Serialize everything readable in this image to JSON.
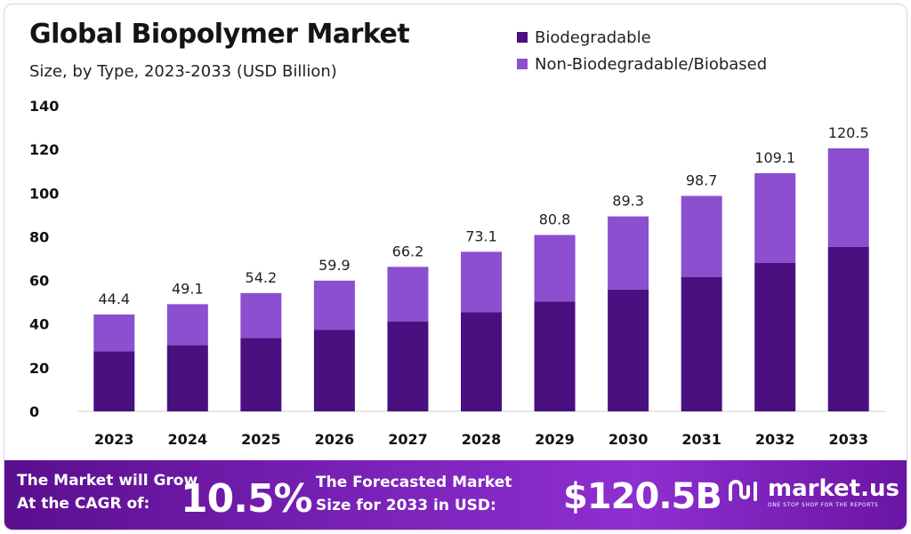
{
  "header": {
    "title": "Global Biopolymer Market",
    "subtitle": "Size, by Type, 2023-2033 (USD Billion)"
  },
  "legend": [
    {
      "label": "Biodegradable",
      "color": "#4a1080"
    },
    {
      "label": "Non-Biodegradable/Biobased",
      "color": "#8b4fd0"
    }
  ],
  "chart_data": {
    "type": "bar",
    "stacked": true,
    "title": "Global Biopolymer Market",
    "subtitle": "Size, by Type, 2023-2033 (USD Billion)",
    "categories": [
      "2023",
      "2024",
      "2025",
      "2026",
      "2027",
      "2028",
      "2029",
      "2030",
      "2031",
      "2032",
      "2033"
    ],
    "series": [
      {
        "name": "Biodegradable",
        "color": "#4a1080",
        "values": [
          27.5,
          30.4,
          33.6,
          37.4,
          41.1,
          45.5,
          50.3,
          55.8,
          61.6,
          68.1,
          75.3
        ]
      },
      {
        "name": "Non-Biodegradable/Biobased",
        "color": "#8b4fd0",
        "values": [
          16.9,
          18.7,
          20.6,
          22.5,
          25.1,
          27.6,
          30.5,
          33.5,
          37.1,
          41.0,
          45.2
        ]
      }
    ],
    "totals": [
      "44.4",
      "49.1",
      "54.2",
      "59.9",
      "66.2",
      "73.1",
      "80.8",
      "89.3",
      "98.7",
      "109.1",
      "120.5"
    ],
    "yticks": [
      0,
      20,
      40,
      60,
      80,
      100,
      120,
      140
    ],
    "ylim": [
      0,
      140
    ],
    "grid": false,
    "legend_position": "top-right"
  },
  "banner": {
    "cagr_label_line1": "The Market will Grow",
    "cagr_label_line2": "At the CAGR of:",
    "cagr_value": "10.5%",
    "forecast_label_line1": "The Forecasted Market",
    "forecast_label_line2": "Size for 2033 in USD:",
    "forecast_value": "$120.5B",
    "brand_name": "market.us",
    "brand_tagline": "ONE STOP SHOP FOR THE REPORTS"
  }
}
